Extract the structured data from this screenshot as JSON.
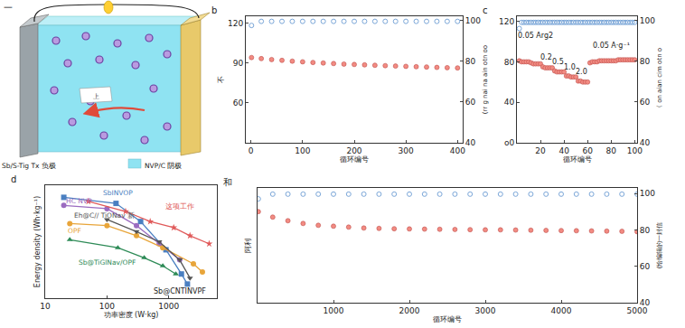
{
  "diagram_a": {
    "panel_label": "一",
    "anode": "Sb/S-Tig Tx 负极",
    "cathode": "NVP/C 阴极",
    "center": "上"
  },
  "chart_data": [
    {
      "type": "scatter",
      "panel_label": "b",
      "x_label": "循环编号",
      "y_label": "不",
      "y2_label": "(rr g nai na ain otn oo",
      "xlim": [
        -10,
        410
      ],
      "xticks": [
        0,
        100,
        200,
        300,
        400
      ],
      "ylim": [
        30,
        125
      ],
      "yticks": [
        60,
        90,
        120
      ],
      "y2lim": [
        40,
        102
      ],
      "y2ticks": [
        40,
        60,
        80,
        100
      ],
      "grid": false,
      "x": [
        1,
        20,
        40,
        60,
        80,
        100,
        120,
        140,
        160,
        180,
        200,
        220,
        240,
        260,
        280,
        300,
        320,
        340,
        360,
        380,
        400
      ],
      "series": [
        {
          "color": "#f28b82",
          "marker": "circle",
          "values": [
            94,
            93.2,
            92.5,
            91.9,
            91.3,
            90.8,
            90.3,
            89.9,
            89.5,
            89.1,
            88.8,
            88.5,
            88.2,
            87.9,
            87.6,
            87.4,
            87.1,
            86.9,
            86.6,
            86.4,
            86.2
          ]
        },
        {
          "color": "#7aa6d8",
          "marker": "open_circle",
          "axis": "y2",
          "values": [
            97.5,
            99.5,
            99.5,
            99.5,
            99.5,
            99.5,
            99.5,
            99.5,
            99.5,
            99.5,
            99.5,
            99.5,
            99.5,
            99.5,
            99.5,
            99.5,
            99.5,
            99.5,
            99.5,
            99.5,
            99.5
          ]
        }
      ]
    },
    {
      "type": "scatter",
      "panel_label": "c",
      "x_label": "循环编号",
      "y2_label": "《 on aian cim otn o",
      "xlim": [
        0,
        102
      ],
      "xticks": [
        20,
        40,
        60,
        80,
        100
      ],
      "ylim": [
        0,
        125
      ],
      "yticks": [
        {
          "value": 0,
          "label": "o0"
        },
        40,
        80,
        120
      ],
      "y2lim": [
        40,
        102
      ],
      "y2ticks": [
        40,
        60,
        80,
        100
      ],
      "grid": false,
      "x": [
        2,
        4,
        6,
        8,
        10,
        12,
        14,
        16,
        18,
        20,
        22,
        24,
        26,
        28,
        30,
        32,
        34,
        36,
        38,
        40,
        42,
        44,
        46,
        48,
        50,
        52,
        54,
        56,
        58,
        60,
        62,
        64,
        66,
        68,
        70,
        72,
        74,
        76,
        78,
        80,
        82,
        84,
        86,
        88,
        90,
        92,
        94,
        96,
        98,
        100
      ],
      "series": [
        {
          "color": "#f28b82",
          "marker": "circle",
          "values": [
            81,
            80,
            80,
            80,
            80,
            79,
            78,
            78,
            78,
            78,
            75,
            74,
            74,
            74,
            74,
            71,
            70,
            70,
            70,
            70,
            66,
            66,
            65,
            65,
            65,
            61,
            61,
            60,
            60,
            60,
            79,
            80,
            80,
            80,
            81,
            81,
            81,
            81,
            81,
            81,
            81,
            81,
            82,
            82,
            82,
            82,
            82,
            82,
            82,
            82
          ]
        },
        {
          "color": "#7aa6d8",
          "marker": "open_circle",
          "axis": "y2",
          "values": [
            96,
            99,
            99,
            99,
            99,
            99,
            99,
            99,
            99,
            99,
            99,
            99,
            99,
            99,
            99,
            99,
            99,
            99,
            99,
            99,
            99,
            99,
            99,
            99,
            99,
            99,
            99,
            99,
            99,
            99,
            99,
            99,
            99,
            99,
            99,
            99,
            99,
            99,
            99,
            99,
            99,
            99,
            99,
            99,
            99,
            99,
            99,
            99,
            99,
            99
          ]
        }
      ],
      "annotations": [
        {
          "text": "0.05 Arg2",
          "x": 16,
          "y": 106
        },
        {
          "text": "0.2",
          "x": 25,
          "y": 84
        },
        {
          "text": "0.5",
          "x": 35,
          "y": 80
        },
        {
          "text": "1.0",
          "x": 45,
          "y": 75
        },
        {
          "text": "2.0",
          "x": 55,
          "y": 70
        },
        {
          "text": "0.05 A·g⁻¹",
          "x": 80,
          "y": 96
        }
      ]
    },
    {
      "type": "line",
      "panel_label": "d",
      "x_label": "功率密度 (W·kg)",
      "y_label": "Energy density (Wh·kg⁻¹)",
      "log": "x",
      "xlim": [
        10,
        6000
      ],
      "xticks": [
        10,
        100,
        1000
      ],
      "ylim": [
        0,
        280
      ],
      "tick_labels": "x",
      "grid": false,
      "series": [
        {
          "name": "SbINVOP",
          "color": "#4a7fc1",
          "marker": "square",
          "x": [
            20,
            140,
            350,
            900,
            1600,
            2000
          ],
          "values": [
            250,
            235,
            190,
            120,
            60,
            35
          ],
          "label_x": 150,
          "label_y": 262
        },
        {
          "name": "HC NVP",
          "color": "#9b6bc0",
          "marker": "circle",
          "x": [
            20,
            100,
            300,
            700,
            1500
          ],
          "values": [
            230,
            222,
            180,
            135,
            95
          ],
          "label_x": 35,
          "label_y": 240
        },
        {
          "name": "这项工作",
          "color": "#e05a5a",
          "marker": "star",
          "x": [
            50,
            200,
            500,
            1200,
            2200,
            4500
          ],
          "values": [
            240,
            215,
            190,
            175,
            155,
            135
          ],
          "label_x": 1500,
          "label_y": 228
        },
        {
          "name": "OPF",
          "color": "#e8a53a",
          "marker": "circle",
          "x": [
            25,
            100,
            300,
            800,
            2500,
            3500
          ],
          "values": [
            185,
            180,
            155,
            125,
            85,
            65
          ],
          "label_x": 30,
          "label_y": 166
        },
        {
          "name": "Eh@C// TiONav 新",
          "color": "#555555",
          "marker": "triangle_down",
          "x": [
            100,
            300,
            700,
            1500,
            2200
          ],
          "values": [
            195,
            165,
            140,
            95,
            50
          ],
          "label_x": 90,
          "label_y": 206
        },
        {
          "name": "Sb@TiGlNav/OPF",
          "color": "#2e8b57",
          "marker": "triangle_up",
          "x": [
            25,
            150,
            400,
            800,
            1300
          ],
          "values": [
            145,
            125,
            100,
            80,
            60
          ],
          "label_x": 100,
          "label_y": 88
        }
      ],
      "annotations": [
        {
          "text": "Sb@CNTINVPF",
          "x": 1500,
          "y": 16
        }
      ]
    },
    {
      "type": "scatter",
      "panel_label": "和",
      "x_label": "循环编号",
      "y_label": "阿利",
      "y2_label": "(给编辑的一封信",
      "xlim": [
        0,
        5000
      ],
      "xticks": [
        1000,
        2000,
        3000,
        4000,
        5000
      ],
      "ylim": [
        40,
        103
      ],
      "yticks": [],
      "y2lim": [
        40,
        103
      ],
      "y2ticks": [
        40,
        60,
        80,
        100
      ],
      "grid": false,
      "x": [
        10,
        200,
        400,
        600,
        800,
        1000,
        1200,
        1400,
        1600,
        1800,
        2000,
        2200,
        2400,
        2600,
        2800,
        3000,
        3200,
        3400,
        3600,
        3800,
        4000,
        4200,
        4400,
        4600,
        4800,
        5000
      ],
      "series": [
        {
          "color": "#f28b82",
          "marker": "circle",
          "values": [
            90,
            87,
            85,
            83.5,
            82.5,
            82,
            81.5,
            81,
            80.8,
            80.6,
            80.5,
            80.4,
            80.3,
            80.2,
            80.1,
            80,
            80,
            79.9,
            79.8,
            79.7,
            79.6,
            79.5,
            79.4,
            79.3,
            79.2,
            79
          ]
        },
        {
          "color": "#7aa6d8",
          "marker": "open_circle",
          "axis": "y2",
          "values": [
            97,
            99.6,
            99.6,
            99.6,
            99.6,
            99.6,
            99.6,
            99.6,
            99.6,
            99.6,
            99.6,
            99.6,
            99.6,
            99.6,
            99.6,
            99.6,
            99.6,
            99.6,
            99.6,
            99.6,
            99.6,
            99.6,
            99.6,
            99.6,
            99.6,
            99.6
          ]
        }
      ]
    }
  ]
}
